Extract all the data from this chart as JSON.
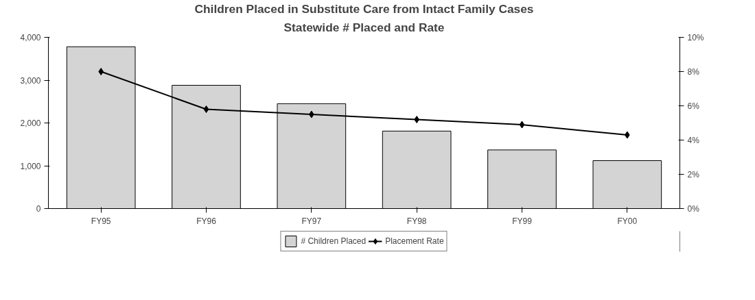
{
  "chart_data": {
    "type": "bar",
    "title": "Children Placed in Substitute Care from Intact Family Cases",
    "subtitle": "Statewide # Placed and Rate",
    "categories": [
      "FY95",
      "FY96",
      "FY97",
      "FY98",
      "FY99",
      "FY00"
    ],
    "series": [
      {
        "name": "# Children Placed",
        "color": "#d4d4d4",
        "values": [
          3780,
          2880,
          2450,
          1810,
          1370,
          1120
        ]
      },
      {
        "name": "Placement Rate",
        "type": "line",
        "axis": "y2",
        "color": "#000000",
        "marker": "diamond",
        "values": [
          8.0,
          5.8,
          5.5,
          5.2,
          4.9,
          4.3
        ]
      }
    ],
    "ylim": [
      0,
      4000
    ],
    "yticks": [
      {
        "value": 0,
        "label": "0"
      },
      {
        "value": 1000,
        "label": "1,000"
      },
      {
        "value": 2000,
        "label": "2,000"
      },
      {
        "value": 3000,
        "label": "3,000"
      },
      {
        "value": 4000,
        "label": "4,000"
      }
    ],
    "y2lim": [
      0,
      10
    ],
    "y2ticks": [
      {
        "value": 0,
        "label": "0%"
      },
      {
        "value": 2,
        "label": "2%"
      },
      {
        "value": 4,
        "label": "4%"
      },
      {
        "value": 6,
        "label": "6%"
      },
      {
        "value": 8,
        "label": "8%"
      },
      {
        "value": 10,
        "label": "10%"
      }
    ],
    "grid": false,
    "legend": "bottom"
  }
}
